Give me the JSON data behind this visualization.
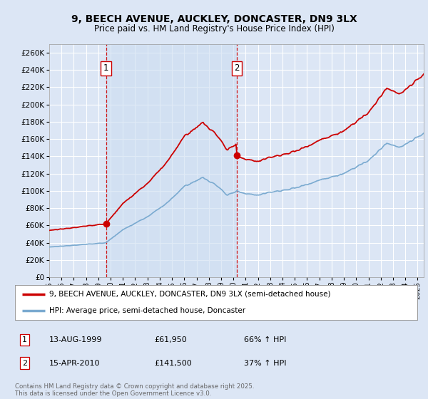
{
  "title": "9, BEECH AVENUE, AUCKLEY, DONCASTER, DN9 3LX",
  "subtitle": "Price paid vs. HM Land Registry's House Price Index (HPI)",
  "background_color": "#dce6f5",
  "plot_bg_color": "#dce6f5",
  "sale1_date": 1999.62,
  "sale1_price": 61950,
  "sale2_date": 2010.29,
  "sale2_price": 141500,
  "ylim": [
    0,
    270000
  ],
  "xlim": [
    1995.0,
    2025.5
  ],
  "yticks": [
    0,
    20000,
    40000,
    60000,
    80000,
    100000,
    120000,
    140000,
    160000,
    180000,
    200000,
    220000,
    240000,
    260000
  ],
  "legend1": "9, BEECH AVENUE, AUCKLEY, DONCASTER, DN9 3LX (semi-detached house)",
  "legend2": "HPI: Average price, semi-detached house, Doncaster",
  "annotation1_label": "1",
  "annotation1_date_str": "13-AUG-1999",
  "annotation1_price_str": "£61,950",
  "annotation1_hpi_str": "66% ↑ HPI",
  "annotation2_label": "2",
  "annotation2_date_str": "15-APR-2010",
  "annotation2_price_str": "£141,500",
  "annotation2_hpi_str": "37% ↑ HPI",
  "footer": "Contains HM Land Registry data © Crown copyright and database right 2025.\nThis data is licensed under the Open Government Licence v3.0.",
  "line_color_red": "#cc0000",
  "line_color_blue": "#7aaad0",
  "shade_color": "#ccddf0",
  "grid_color": "#ffffff",
  "vline_color": "#cc0000",
  "hpi_seed": 1234,
  "hpi_noise": 0.012
}
